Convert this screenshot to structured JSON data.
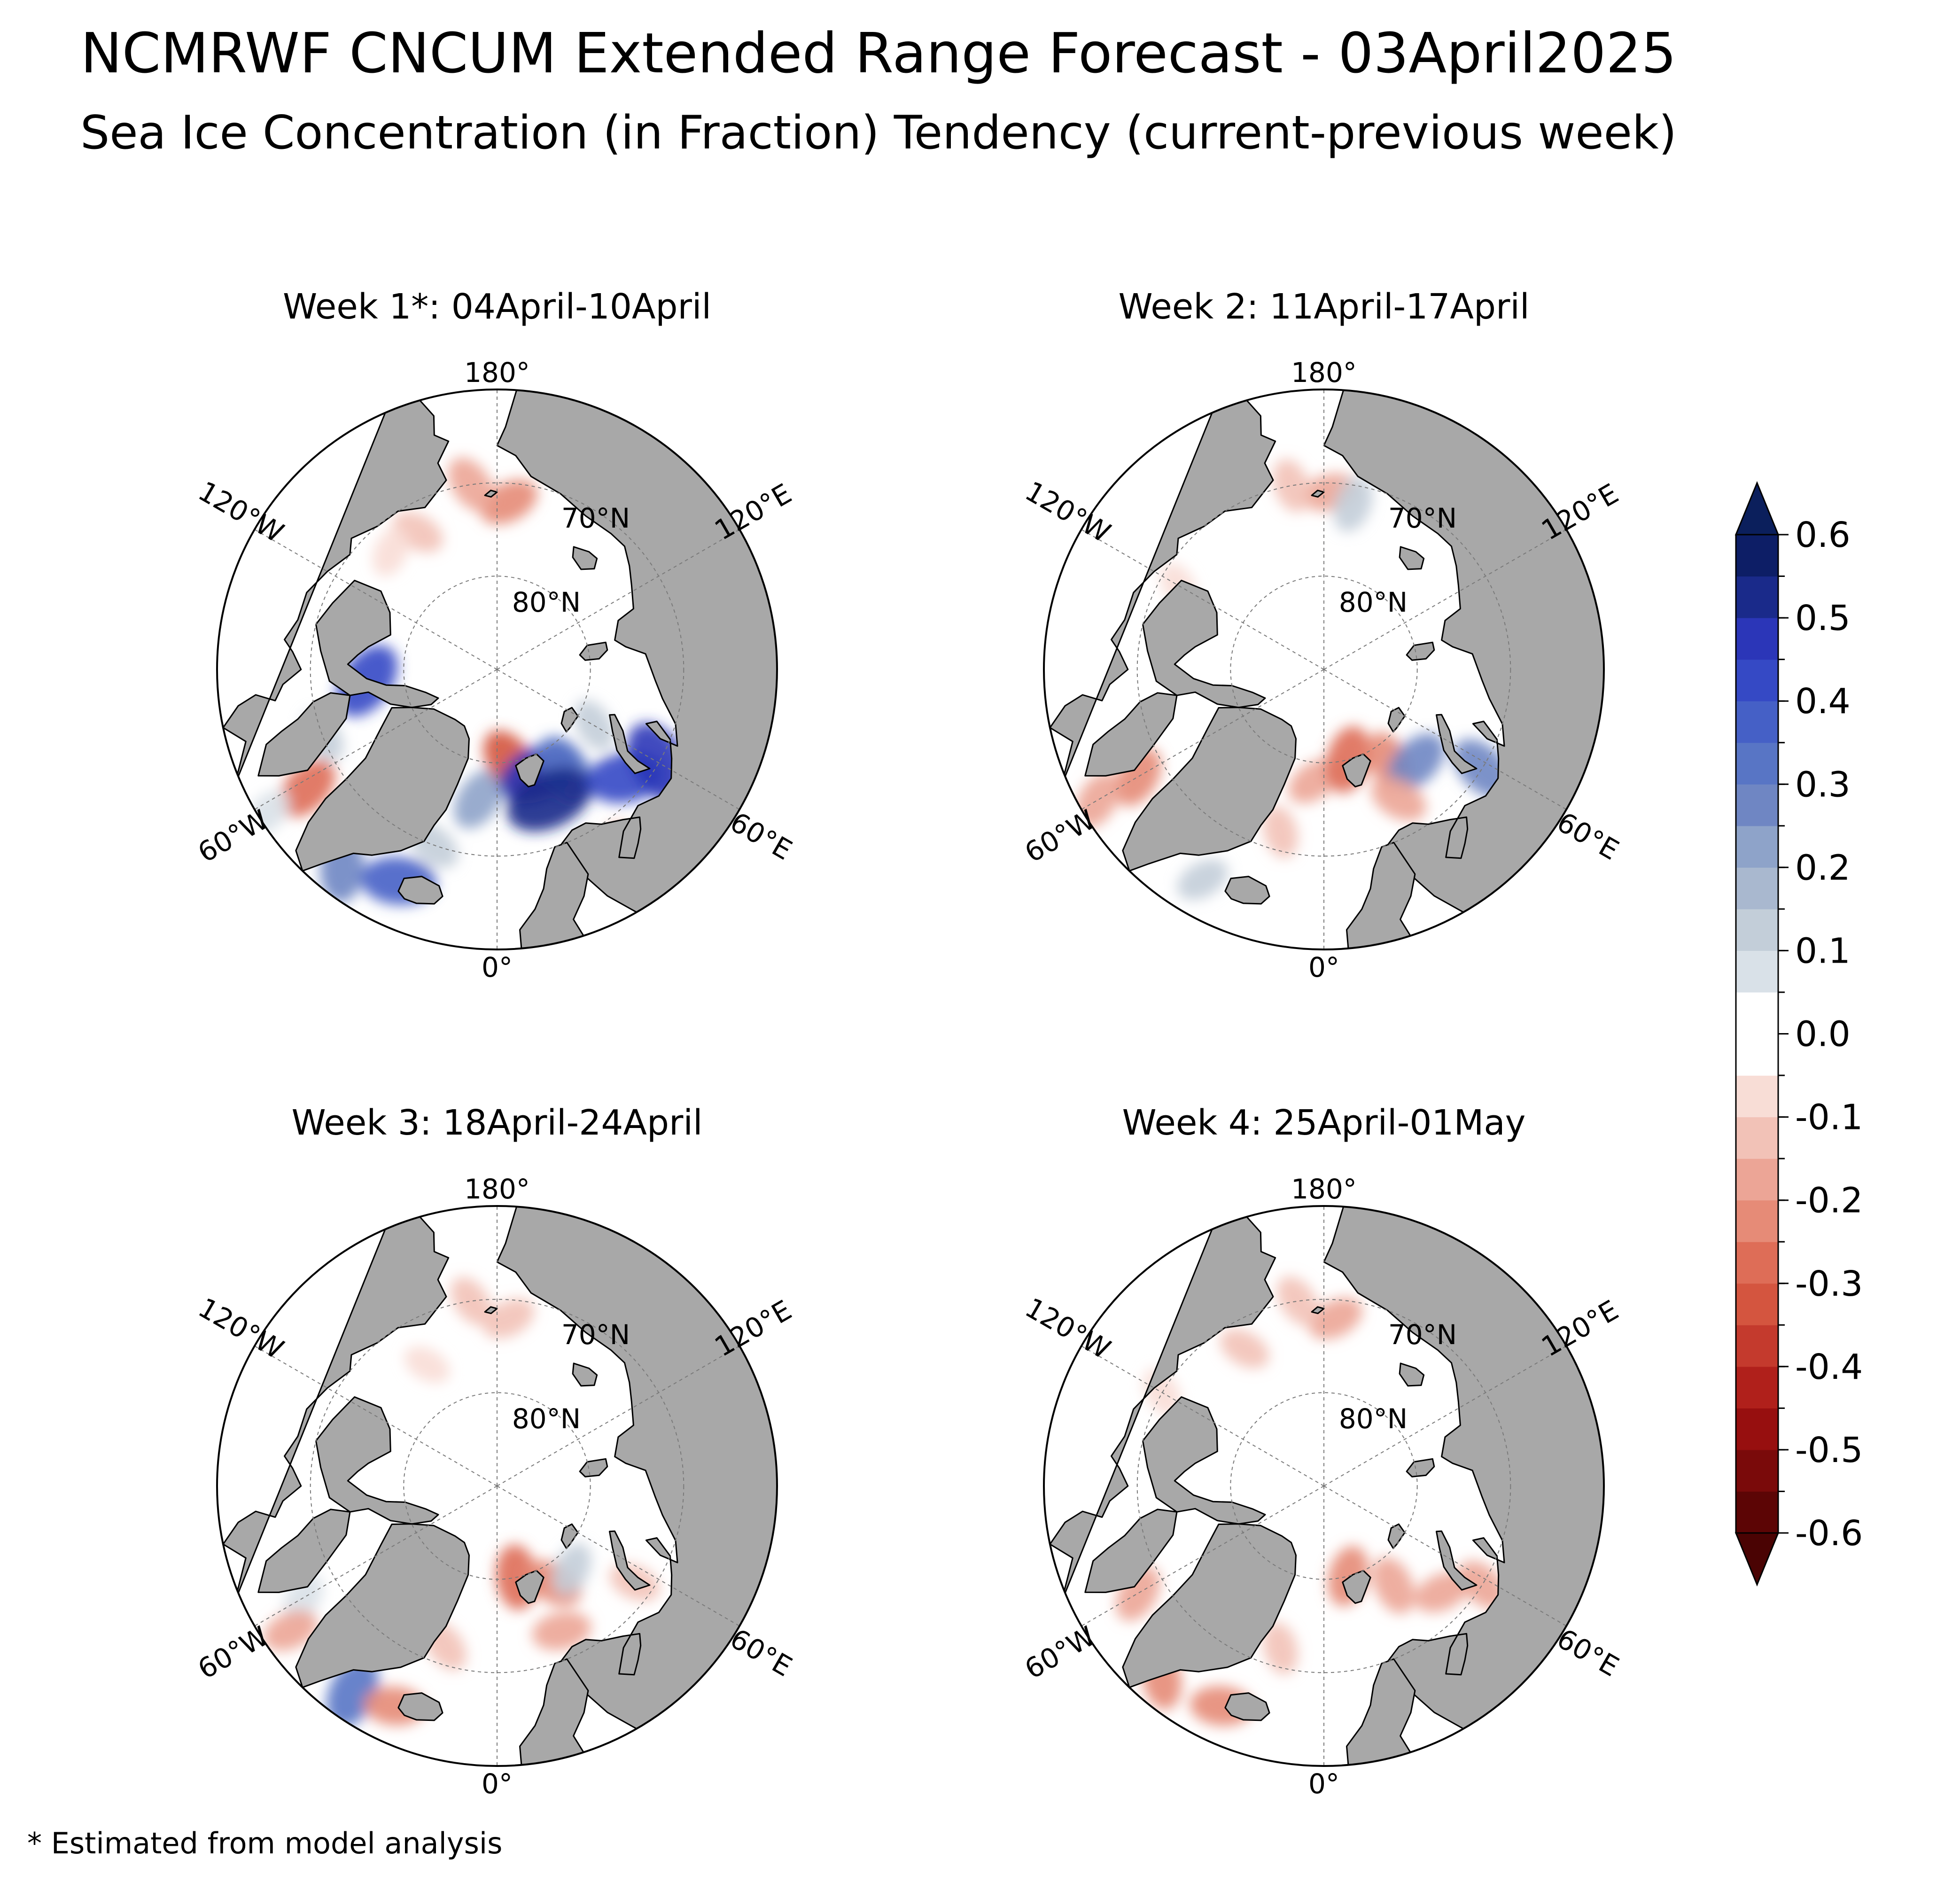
{
  "title": "NCMRWF CNCUM Extended Range Forecast - 03April2025",
  "subtitle": "Sea Ice Concentration (in Fraction) Tendency (current-previous week)",
  "footnote": "* Estimated from model analysis",
  "colors": {
    "land": "#a8a8a8",
    "ocean": "#ffffff",
    "graticule": "#7a7a7a",
    "frame": "#000000"
  },
  "panel_labels": {
    "lon_180": "180°",
    "lon_120W": "120°W",
    "lon_120E": "120°E",
    "lon_60W": "60°W",
    "lon_60E": "60°E",
    "lon_0": "0°",
    "lat_70": "70°N",
    "lat_80": "80°N"
  },
  "panels": [
    {
      "title": "Week 1*: 04April-10April",
      "blobs": [
        {
          "lat": 72,
          "lon": 176,
          "v": -0.2
        },
        {
          "lat": 70,
          "lon": -172,
          "v": -0.18
        },
        {
          "lat": 73,
          "lon": -150,
          "v": -0.12
        },
        {
          "lat": 73,
          "lon": -138,
          "v": -0.08
        },
        {
          "lat": 76,
          "lon": -85,
          "v": 0.42
        },
        {
          "lat": 70,
          "lon": -69,
          "v": 0.12
        },
        {
          "lat": 66,
          "lon": -58,
          "v": -0.28
        },
        {
          "lat": 61,
          "lon": -58,
          "v": 0.1
        },
        {
          "lat": 63,
          "lon": -38,
          "v": 0.3
        },
        {
          "lat": 65,
          "lon": -25,
          "v": 0.38
        },
        {
          "lat": 70,
          "lon": -20,
          "v": 0.15
        },
        {
          "lat": 76,
          "lon": -8,
          "v": 0.25
        },
        {
          "lat": 80,
          "lon": 8,
          "v": -0.3
        },
        {
          "lat": 78,
          "lon": 22,
          "v": 0.48
        },
        {
          "lat": 77,
          "lon": 34,
          "v": 0.35
        },
        {
          "lat": 75,
          "lon": 22,
          "v": 0.55
        },
        {
          "lat": 72,
          "lon": 50,
          "v": 0.42
        },
        {
          "lat": 70,
          "lon": 60,
          "v": 0.5
        },
        {
          "lat": 66,
          "lon": 35,
          "v": -0.2
        },
        {
          "lat": 78,
          "lon": 60,
          "v": 0.12
        }
      ]
    },
    {
      "title": "Week 2: 11April-17April",
      "blobs": [
        {
          "lat": 71,
          "lon": 178,
          "v": -0.15
        },
        {
          "lat": 70,
          "lon": -170,
          "v": -0.12
        },
        {
          "lat": 72,
          "lon": 170,
          "v": 0.15
        },
        {
          "lat": 72,
          "lon": -120,
          "v": -0.05
        },
        {
          "lat": 67,
          "lon": -60,
          "v": -0.22
        },
        {
          "lat": 62,
          "lon": -60,
          "v": -0.18
        },
        {
          "lat": 64,
          "lon": -30,
          "v": 0.12
        },
        {
          "lat": 72,
          "lon": -15,
          "v": -0.1
        },
        {
          "lat": 78,
          "lon": -5,
          "v": -0.15
        },
        {
          "lat": 80,
          "lon": 15,
          "v": -0.28
        },
        {
          "lat": 78,
          "lon": 35,
          "v": -0.2
        },
        {
          "lat": 76,
          "lon": 45,
          "v": 0.28
        },
        {
          "lat": 70,
          "lon": 58,
          "v": 0.3
        },
        {
          "lat": 74,
          "lon": 30,
          "v": -0.18
        }
      ]
    },
    {
      "title": "Week 3: 18April-24April",
      "blobs": [
        {
          "lat": 72,
          "lon": 176,
          "v": -0.12
        },
        {
          "lat": 70,
          "lon": -172,
          "v": -0.1
        },
        {
          "lat": 75,
          "lon": -150,
          "v": -0.05
        },
        {
          "lat": 66,
          "lon": -60,
          "v": 0.1
        },
        {
          "lat": 63,
          "lon": -55,
          "v": -0.15
        },
        {
          "lat": 63,
          "lon": -35,
          "v": 0.35
        },
        {
          "lat": 64,
          "lon": -25,
          "v": -0.2
        },
        {
          "lat": 72,
          "lon": -18,
          "v": -0.12
        },
        {
          "lat": 80,
          "lon": 12,
          "v": -0.25
        },
        {
          "lat": 78,
          "lon": 30,
          "v": -0.2
        },
        {
          "lat": 78,
          "lon": 42,
          "v": 0.12
        },
        {
          "lat": 73,
          "lon": 24,
          "v": -0.18
        },
        {
          "lat": 72,
          "lon": 55,
          "v": -0.1
        }
      ]
    },
    {
      "title": "Week 4: 25April-01May",
      "blobs": [
        {
          "lat": 72,
          "lon": 176,
          "v": -0.15
        },
        {
          "lat": 70,
          "lon": -172,
          "v": -0.12
        },
        {
          "lat": 73,
          "lon": -150,
          "v": -0.1
        },
        {
          "lat": 70,
          "lon": -120,
          "v": -0.08
        },
        {
          "lat": 67,
          "lon": -60,
          "v": -0.18
        },
        {
          "lat": 63,
          "lon": -40,
          "v": -0.2
        },
        {
          "lat": 64,
          "lon": -25,
          "v": -0.22
        },
        {
          "lat": 72,
          "lon": -15,
          "v": -0.1
        },
        {
          "lat": 80,
          "lon": 15,
          "v": -0.2
        },
        {
          "lat": 77,
          "lon": 35,
          "v": -0.18
        },
        {
          "lat": 73,
          "lon": 48,
          "v": -0.15
        },
        {
          "lat": 70,
          "lon": 58,
          "v": -0.15
        }
      ]
    }
  ],
  "colorbar": {
    "levels": [
      -0.6,
      -0.55,
      -0.5,
      -0.45,
      -0.4,
      -0.35,
      -0.3,
      -0.25,
      -0.2,
      -0.15,
      -0.1,
      -0.05,
      0.05,
      0.1,
      0.15,
      0.2,
      0.25,
      0.3,
      0.35,
      0.4,
      0.45,
      0.5,
      0.55,
      0.6
    ],
    "colors": [
      "#5c0505",
      "#7a0a0a",
      "#970f0f",
      "#b0201b",
      "#c43a2d",
      "#d4553f",
      "#de6d57",
      "#e68b77",
      "#eca596",
      "#f2c2b7",
      "#f8ddd6",
      "#ffffff",
      "#d9e1e8",
      "#c3ced9",
      "#a9b8cf",
      "#8ea3c9",
      "#6f86c3",
      "#5875c5",
      "#4560c6",
      "#3549c5",
      "#2b36b8",
      "#1a2a8a",
      "#0d1e66"
    ],
    "under_color": "#4a0303",
    "over_color": "#0b1f5c",
    "tick_labels": [
      "0.6",
      "0.5",
      "0.4",
      "0.3",
      "0.2",
      "0.1",
      "0.0",
      "-0.1",
      "-0.2",
      "-0.3",
      "-0.4",
      "-0.5",
      "-0.6"
    ],
    "tick_values": [
      0.6,
      0.5,
      0.4,
      0.3,
      0.2,
      0.1,
      0.0,
      -0.1,
      -0.2,
      -0.3,
      -0.4,
      -0.5,
      -0.6
    ]
  }
}
